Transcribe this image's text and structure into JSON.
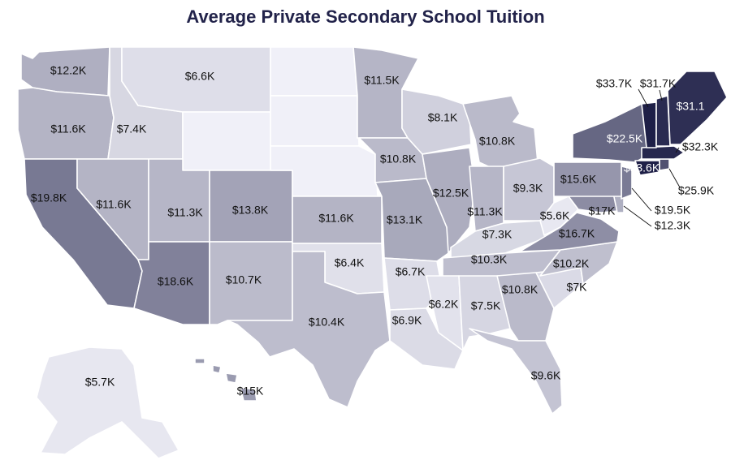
{
  "title": "Average Private Secondary School Tuition",
  "colors": {
    "lightest": "#f0f0f8",
    "darkest": "#1c1d45",
    "border": "#ffffff"
  },
  "states": [
    {
      "id": "WA",
      "label": "$12.2K",
      "value": 12.2
    },
    {
      "id": "OR",
      "label": "$11.6K",
      "value": 11.6
    },
    {
      "id": "CA",
      "label": "$19.8K",
      "value": 19.8
    },
    {
      "id": "ID",
      "label": "$7.4K",
      "value": 7.4
    },
    {
      "id": "NV",
      "label": "$11.6K",
      "value": 11.6
    },
    {
      "id": "MT",
      "label": "$6.6K",
      "value": 6.6
    },
    {
      "id": "WY",
      "label": "",
      "value": null
    },
    {
      "id": "UT",
      "label": "$11.3K",
      "value": 11.3
    },
    {
      "id": "AZ",
      "label": "$18.6K",
      "value": 18.6
    },
    {
      "id": "CO",
      "label": "$13.8K",
      "value": 13.8
    },
    {
      "id": "NM",
      "label": "$10.7K",
      "value": 10.7
    },
    {
      "id": "ND",
      "label": "",
      "value": null
    },
    {
      "id": "SD",
      "label": "",
      "value": null
    },
    {
      "id": "NE",
      "label": "",
      "value": null
    },
    {
      "id": "KS",
      "label": "$11.6K",
      "value": 11.6
    },
    {
      "id": "OK",
      "label": "$6.4K",
      "value": 6.4
    },
    {
      "id": "TX",
      "label": "$10.4K",
      "value": 10.4
    },
    {
      "id": "MN",
      "label": "$11.5K",
      "value": 11.5
    },
    {
      "id": "IA",
      "label": "$10.8K",
      "value": 10.8
    },
    {
      "id": "MO",
      "label": "$13.1K",
      "value": 13.1
    },
    {
      "id": "AR",
      "label": "$6.7K",
      "value": 6.7
    },
    {
      "id": "LA",
      "label": "$6.9K",
      "value": 6.9
    },
    {
      "id": "WI",
      "label": "$8.1K",
      "value": 8.1
    },
    {
      "id": "IL",
      "label": "$12.5K",
      "value": 12.5
    },
    {
      "id": "MI",
      "label": "$10.8K",
      "value": 10.8
    },
    {
      "id": "IN",
      "label": "$11.3K",
      "value": 11.3
    },
    {
      "id": "OH",
      "label": "$9.3K",
      "value": 9.3
    },
    {
      "id": "KY",
      "label": "$7.3K",
      "value": 7.3
    },
    {
      "id": "TN",
      "label": "$10.3K",
      "value": 10.3
    },
    {
      "id": "MS",
      "label": "$6.2K",
      "value": 6.2
    },
    {
      "id": "AL",
      "label": "$7.5K",
      "value": 7.5
    },
    {
      "id": "GA",
      "label": "$10.8K",
      "value": 10.8
    },
    {
      "id": "FL",
      "label": "$9.6K",
      "value": 9.6
    },
    {
      "id": "SC",
      "label": "$7K",
      "value": 7.0
    },
    {
      "id": "NC",
      "label": "$10.2K",
      "value": 10.2
    },
    {
      "id": "VA",
      "label": "$16.7K",
      "value": 16.7
    },
    {
      "id": "WV",
      "label": "$5.6K",
      "value": 5.6
    },
    {
      "id": "MD",
      "label": "$17K",
      "value": 17.0
    },
    {
      "id": "DE",
      "label": "$12.3K",
      "value": 12.3
    },
    {
      "id": "NJ",
      "label": "$19.5K",
      "value": 19.5
    },
    {
      "id": "PA",
      "label": "$15.6K",
      "value": 15.6
    },
    {
      "id": "NY",
      "label": "$22.5K",
      "value": 22.5
    },
    {
      "id": "CT",
      "label": "$33.6K",
      "value": 33.6
    },
    {
      "id": "RI",
      "label": "$25.9K",
      "value": 25.9
    },
    {
      "id": "MA",
      "label": "$32.3K",
      "value": 32.3
    },
    {
      "id": "VT",
      "label": "$33.7K",
      "value": 33.7
    },
    {
      "id": "NH",
      "label": "$31.7K",
      "value": 31.7
    },
    {
      "id": "ME",
      "label": "$31.1",
      "value": 31.1
    },
    {
      "id": "AK",
      "label": "$5.7K",
      "value": 5.7
    },
    {
      "id": "HI",
      "label": "$15K",
      "value": 15.0
    }
  ]
}
